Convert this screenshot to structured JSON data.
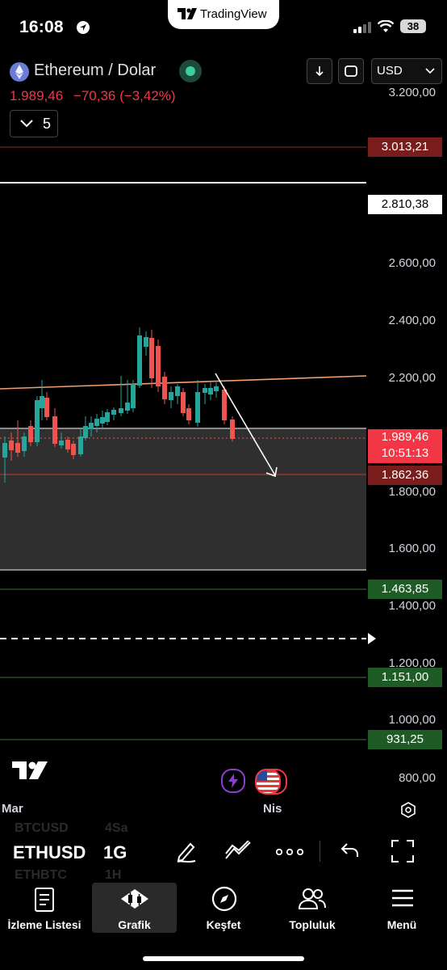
{
  "status_bar": {
    "time": "16:08",
    "battery": "38"
  },
  "brand": {
    "name": "TradingView"
  },
  "header": {
    "symbol_title": "Ethereum / Dolar",
    "last_price": "1.989,46",
    "change": "−70,36 (−3,42%)",
    "currency": "USD",
    "interval_value": "5"
  },
  "price_axis": {
    "labels": [
      "3.200,00",
      "2.600,00",
      "2.400,00",
      "2.200,00",
      "1.800,00",
      "1.600,00",
      "1.400,00",
      "1.200,00",
      "1.000,00",
      "800,00"
    ]
  },
  "price_tags": {
    "resistance_red": "3.013,21",
    "resistance_white": "2.810,38",
    "current_price": "1.989,46",
    "countdown": "10:51:13",
    "support_red": "1.862,36",
    "support_green_1": "1.463,85",
    "support_green_2": "1.151,00",
    "support_green_3": "931,25"
  },
  "time_axis": {
    "labels": [
      "Mar",
      "Nis"
    ]
  },
  "toolbar": {
    "symbol": "ETHUSD",
    "timeframe": "1G",
    "ghost_prev_symbol": "BTCUSD",
    "ghost_prev_timeframe": "4Sa",
    "ghost_next_symbol": "ETHBTC",
    "ghost_next_timeframe": "1H"
  },
  "tabs": {
    "watchlist": "İzleme Listesi",
    "chart": "Grafik",
    "explore": "Keşfet",
    "community": "Topluluk",
    "menu": "Menü"
  },
  "colors": {
    "up": "#26a69a",
    "down": "#ef5350",
    "accent_red": "#f23645",
    "trendline": "#f0a070"
  }
}
